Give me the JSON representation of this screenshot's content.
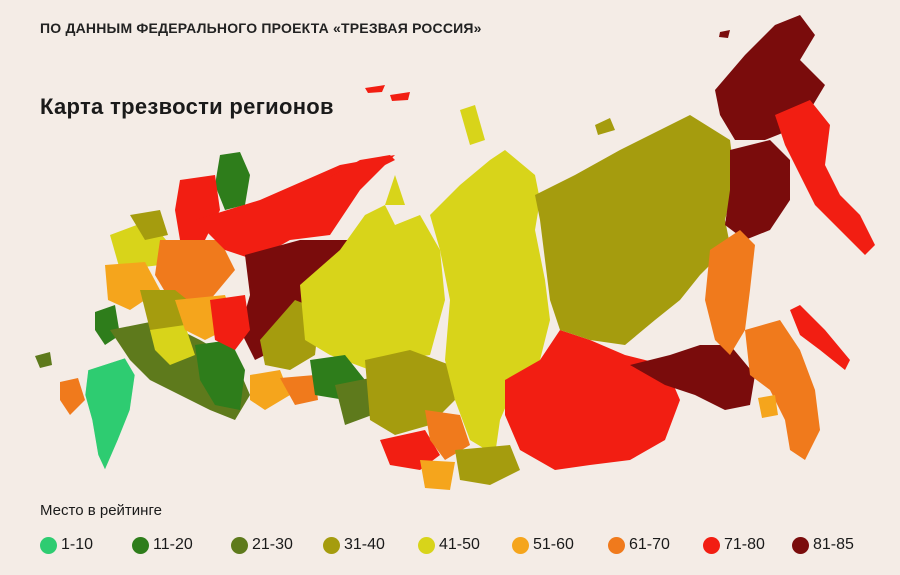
{
  "header": {
    "source": "ПО ДАННЫМ ФЕДЕРАЛЬНОГО ПРОЕКТА «ТРЕЗВАЯ РОССИЯ»",
    "title": "Карта трезвости регионов"
  },
  "legend": {
    "title": "Место в рейтинге",
    "items": [
      {
        "label": "1-10",
        "color": "#2ecc71"
      },
      {
        "label": "11-20",
        "color": "#2e7d1b"
      },
      {
        "label": "21-30",
        "color": "#5e7a1c"
      },
      {
        "label": "31-40",
        "color": "#a59c0e"
      },
      {
        "label": "41-50",
        "color": "#d8d41a"
      },
      {
        "label": "51-60",
        "color": "#f5a51c"
      },
      {
        "label": "61-70",
        "color": "#f07a1c"
      },
      {
        "label": "71-80",
        "color": "#f21e12"
      },
      {
        "label": "81-85",
        "color": "#7a0c0c"
      }
    ]
  }
}
